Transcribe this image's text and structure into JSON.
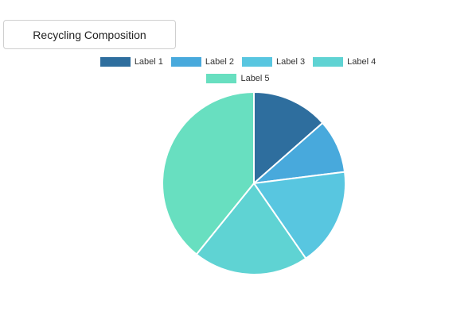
{
  "title": "Recycling Composition",
  "chart_data": {
    "type": "pie",
    "title": "Recycling Composition",
    "labels": [
      "Label 1",
      "Label 2",
      "Label 3",
      "Label 4",
      "Label 5"
    ],
    "values": [
      13.5,
      9.5,
      17.4,
      20.4,
      39.2
    ],
    "colors": [
      "#2e6e9e",
      "#48a9dc",
      "#58c6e0",
      "#5fd3d3",
      "#68dfc0"
    ],
    "legend_position": "top"
  }
}
